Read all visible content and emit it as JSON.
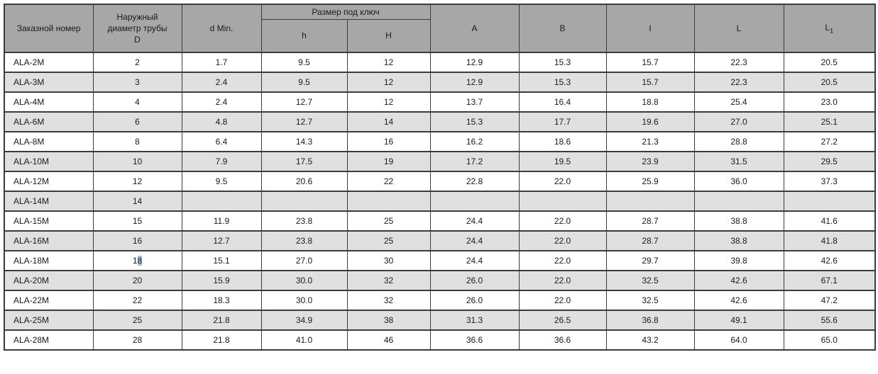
{
  "table": {
    "columns": {
      "order": "Заказной номер",
      "outer_diameter": "Наружный диаметр трубы D",
      "d_min": "d Min.",
      "wrench_group": "Размер под ключ",
      "h": "h",
      "H": "H",
      "A": "A",
      "B": "B",
      "l": "l",
      "L": "L",
      "L1_base": "L",
      "L1_sub": "1"
    },
    "rows": [
      {
        "order": "ALA-2M",
        "values": [
          "2",
          "1.7",
          "9.5",
          "12",
          "12.9",
          "15.3",
          "15.7",
          "22.3",
          "20.5"
        ]
      },
      {
        "order": "ALA-3M",
        "values": [
          "3",
          "2.4",
          "9.5",
          "12",
          "12.9",
          "15.3",
          "15.7",
          "22.3",
          "20.5"
        ]
      },
      {
        "order": "ALA-4M",
        "values": [
          "4",
          "2.4",
          "12.7",
          "12",
          "13.7",
          "16.4",
          "18.8",
          "25.4",
          "23.0"
        ]
      },
      {
        "order": "ALA-6M",
        "values": [
          "6",
          "4.8",
          "12.7",
          "14",
          "15.3",
          "17.7",
          "19.6",
          "27.0",
          "25.1"
        ]
      },
      {
        "order": "ALA-8M",
        "values": [
          "8",
          "6.4",
          "14.3",
          "16",
          "16.2",
          "18.6",
          "21.3",
          "28.8",
          "27.2"
        ]
      },
      {
        "order": "ALA-10M",
        "values": [
          "10",
          "7.9",
          "17.5",
          "19",
          "17.2",
          "19.5",
          "23.9",
          "31.5",
          "29.5"
        ]
      },
      {
        "order": "ALA-12M",
        "values": [
          "12",
          "9.5",
          "20.6",
          "22",
          "22.8",
          "22.0",
          "25.9",
          "36.0",
          "37.3"
        ]
      },
      {
        "order": "ALA-14M",
        "values": [
          "14",
          "",
          "",
          "",
          "",
          "",
          "",
          "",
          ""
        ]
      },
      {
        "order": "ALA-15M",
        "values": [
          "15",
          "11.9",
          "23.8",
          "25",
          "24.4",
          "22.0",
          "28.7",
          "38.8",
          "41.6"
        ]
      },
      {
        "order": "ALA-16M",
        "values": [
          "16",
          "12.7",
          "23.8",
          "25",
          "24.4",
          "22.0",
          "28.7",
          "38.8",
          "41.8"
        ]
      },
      {
        "order": "ALA-18M",
        "values": [
          "18",
          "15.1",
          "27.0",
          "30",
          "24.4",
          "22.0",
          "29.7",
          "39.8",
          "42.6"
        ]
      },
      {
        "order": "ALA-20M",
        "values": [
          "20",
          "15.9",
          "30.0",
          "32",
          "26.0",
          "22.0",
          "32.5",
          "42.6",
          "67.1"
        ]
      },
      {
        "order": "ALA-22M",
        "values": [
          "22",
          "18.3",
          "30.0",
          "32",
          "26.0",
          "22.0",
          "32.5",
          "42.6",
          "47.2"
        ]
      },
      {
        "order": "ALA-25M",
        "values": [
          "25",
          "21.8",
          "34.9",
          "38",
          "31.3",
          "26.5",
          "36.8",
          "49.1",
          "55.6"
        ]
      },
      {
        "order": "ALA-28M",
        "values": [
          "28",
          "21.8",
          "41.0",
          "46",
          "36.6",
          "36.6",
          "43.2",
          "64.0",
          "65.0"
        ]
      }
    ]
  },
  "text_selection": {
    "row_order": "ALA-18M",
    "column_index": 0,
    "selected_text": "8"
  },
  "colors": {
    "header_bg": "#a7a7a7",
    "stripe_bg": "#e0e0e0",
    "row_bg": "#ffffff",
    "border": "#3b3b3b",
    "text": "#1a1a1a",
    "selection_bg": "#9dc3e6"
  }
}
